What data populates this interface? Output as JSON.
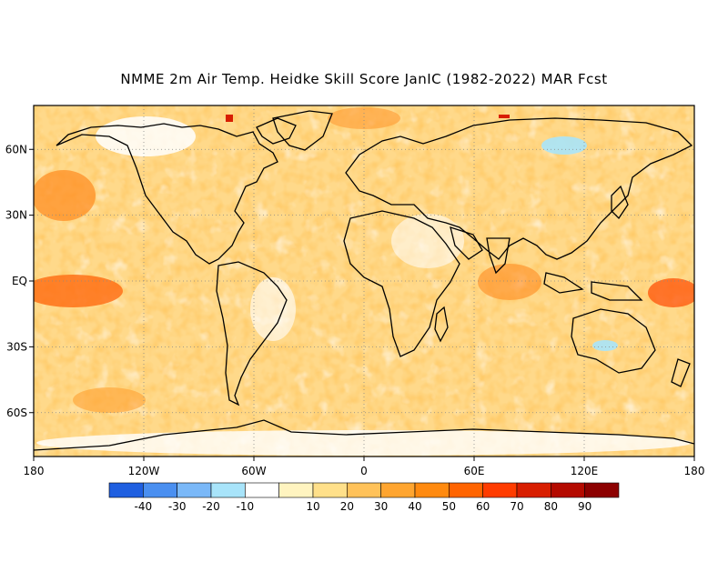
{
  "title": "NMME 2m Air Temp. Heidke Skill Score JanIC (1982-2022) MAR Fcst",
  "map": {
    "lon_range": [
      -180,
      180
    ],
    "lat_range": [
      -80,
      80
    ],
    "lat_labels": [
      {
        "lat": 60,
        "label": "60N"
      },
      {
        "lat": 30,
        "label": "30N"
      },
      {
        "lat": 0,
        "label": "EQ"
      },
      {
        "lat": -30,
        "label": "30S"
      },
      {
        "lat": -60,
        "label": "60S"
      }
    ],
    "lon_labels": [
      {
        "lon": -180,
        "label": "180"
      },
      {
        "lon": -120,
        "label": "120W"
      },
      {
        "lon": -60,
        "label": "60W"
      },
      {
        "lon": 0,
        "label": "0"
      },
      {
        "lon": 60,
        "label": "60E"
      },
      {
        "lon": 120,
        "label": "120E"
      },
      {
        "lon": 180,
        "label": "180"
      }
    ],
    "gridlines": "dotted"
  },
  "colorbar": {
    "colors": [
      "#1f5fe0",
      "#4a8ff0",
      "#7ab8f8",
      "#a8e4fa",
      "#ffffff",
      "#fff4c0",
      "#ffe08a",
      "#ffc25a",
      "#ffa530",
      "#ff8a10",
      "#ff6400",
      "#ff3c00",
      "#d81e00",
      "#b40a00",
      "#8c0000"
    ],
    "labels": [
      "-40",
      "-30",
      "-20",
      "-10",
      "10",
      "20",
      "30",
      "40",
      "50",
      "60",
      "70",
      "80",
      "90"
    ]
  }
}
